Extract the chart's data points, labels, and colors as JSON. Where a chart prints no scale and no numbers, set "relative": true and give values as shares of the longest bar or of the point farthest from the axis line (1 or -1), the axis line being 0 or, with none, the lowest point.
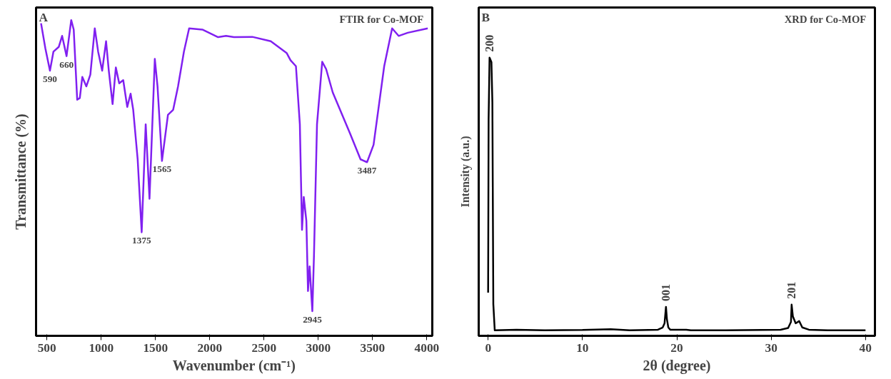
{
  "chart_data": [
    {
      "type": "line",
      "title": "FTIR for Co-MOF",
      "xlabel": "Wavenumber (cm⁻¹)",
      "ylabel": "Transmittance (%)",
      "relative": true,
      "tick_labels": "x",
      "xlim": [
        400,
        4050
      ],
      "xticks": [
        500,
        1000,
        1500,
        2000,
        2500,
        3000,
        3500,
        4000
      ],
      "x": [
        446,
        486,
        528,
        560,
        609,
        640,
        681,
        724,
        747,
        779,
        803,
        826,
        863,
        900,
        941,
        972,
        1009,
        1045,
        1070,
        1105,
        1135,
        1166,
        1203,
        1240,
        1271,
        1295,
        1336,
        1373,
        1410,
        1445,
        1494,
        1519,
        1560,
        1615,
        1663,
        1708,
        1762,
        1810,
        1932,
        2077,
        2150,
        2223,
        2392,
        2562,
        2708,
        2744,
        2794,
        2830,
        2850,
        2866,
        2890,
        2905,
        2920,
        2945,
        2960,
        2988,
        3036,
        3072,
        3133,
        3291,
        3389,
        3449,
        3509,
        3607,
        3680,
        3740,
        3824,
        4008
      ],
      "series": [
        {
          "color": "#8020f0",
          "values": [
            0.99,
            0.91,
            0.84,
            0.9,
            0.915,
            0.95,
            0.886,
            1.0,
            0.97,
            0.748,
            0.753,
            0.82,
            0.79,
            0.827,
            0.974,
            0.9,
            0.84,
            0.933,
            0.84,
            0.734,
            0.85,
            0.8,
            0.81,
            0.725,
            0.767,
            0.716,
            0.559,
            0.328,
            0.67,
            0.434,
            0.877,
            0.79,
            0.554,
            0.7,
            0.716,
            0.79,
            0.9,
            0.974,
            0.97,
            0.946,
            0.95,
            0.946,
            0.947,
            0.933,
            0.896,
            0.873,
            0.854,
            0.67,
            0.336,
            0.44,
            0.364,
            0.142,
            0.22,
            0.078,
            0.253,
            0.67,
            0.868,
            0.845,
            0.771,
            0.642,
            0.559,
            0.55,
            0.605,
            0.854,
            0.974,
            0.95,
            0.96,
            0.974
          ]
        }
      ],
      "annotations": [
        "A",
        {
          "text": "590",
          "x": 528,
          "y": 0.84
        },
        {
          "text": "660",
          "x": 681,
          "y": 0.886
        },
        {
          "text": "1375",
          "x": 1373,
          "y": 0.328
        },
        {
          "text": "1565",
          "x": 1560,
          "y": 0.554
        },
        {
          "text": "2945",
          "x": 2945,
          "y": 0.078
        },
        {
          "text": "3487",
          "x": 3449,
          "y": 0.55
        }
      ]
    },
    {
      "type": "line",
      "title": "XRD for Co-MOF",
      "xlabel": "2θ (degree)",
      "ylabel": "Intensity (a.u.)",
      "relative": true,
      "tick_labels": "x",
      "xlim": [
        -1,
        41
      ],
      "xticks": [
        0,
        10,
        20,
        30,
        40
      ],
      "x": [
        0,
        0.05,
        0.15,
        0.35,
        0.45,
        0.55,
        0.7,
        3,
        6,
        10,
        13,
        15,
        18,
        18.5,
        18.7,
        18.85,
        18.95,
        19.1,
        19.3,
        21,
        21.5,
        25,
        31,
        31.8,
        32.1,
        32.17,
        32.3,
        32.6,
        32.97,
        33.3,
        34,
        36,
        40
      ],
      "series": [
        {
          "color": "#000000",
          "values": [
            0.155,
            0.777,
            1.0,
            0.984,
            0.84,
            0.114,
            0.02,
            0.022,
            0.02,
            0.021,
            0.024,
            0.02,
            0.022,
            0.03,
            0.045,
            0.104,
            0.06,
            0.03,
            0.022,
            0.022,
            0.02,
            0.02,
            0.022,
            0.028,
            0.05,
            0.112,
            0.07,
            0.045,
            0.053,
            0.03,
            0.022,
            0.02,
            0.02
          ]
        }
      ],
      "annotations": [
        "B",
        {
          "text": "200",
          "x": 0.15,
          "y": 1.0
        },
        {
          "text": "001",
          "x": 18.85,
          "y": 0.104
        },
        {
          "text": "201",
          "x": 32.17,
          "y": 0.112
        }
      ]
    }
  ]
}
